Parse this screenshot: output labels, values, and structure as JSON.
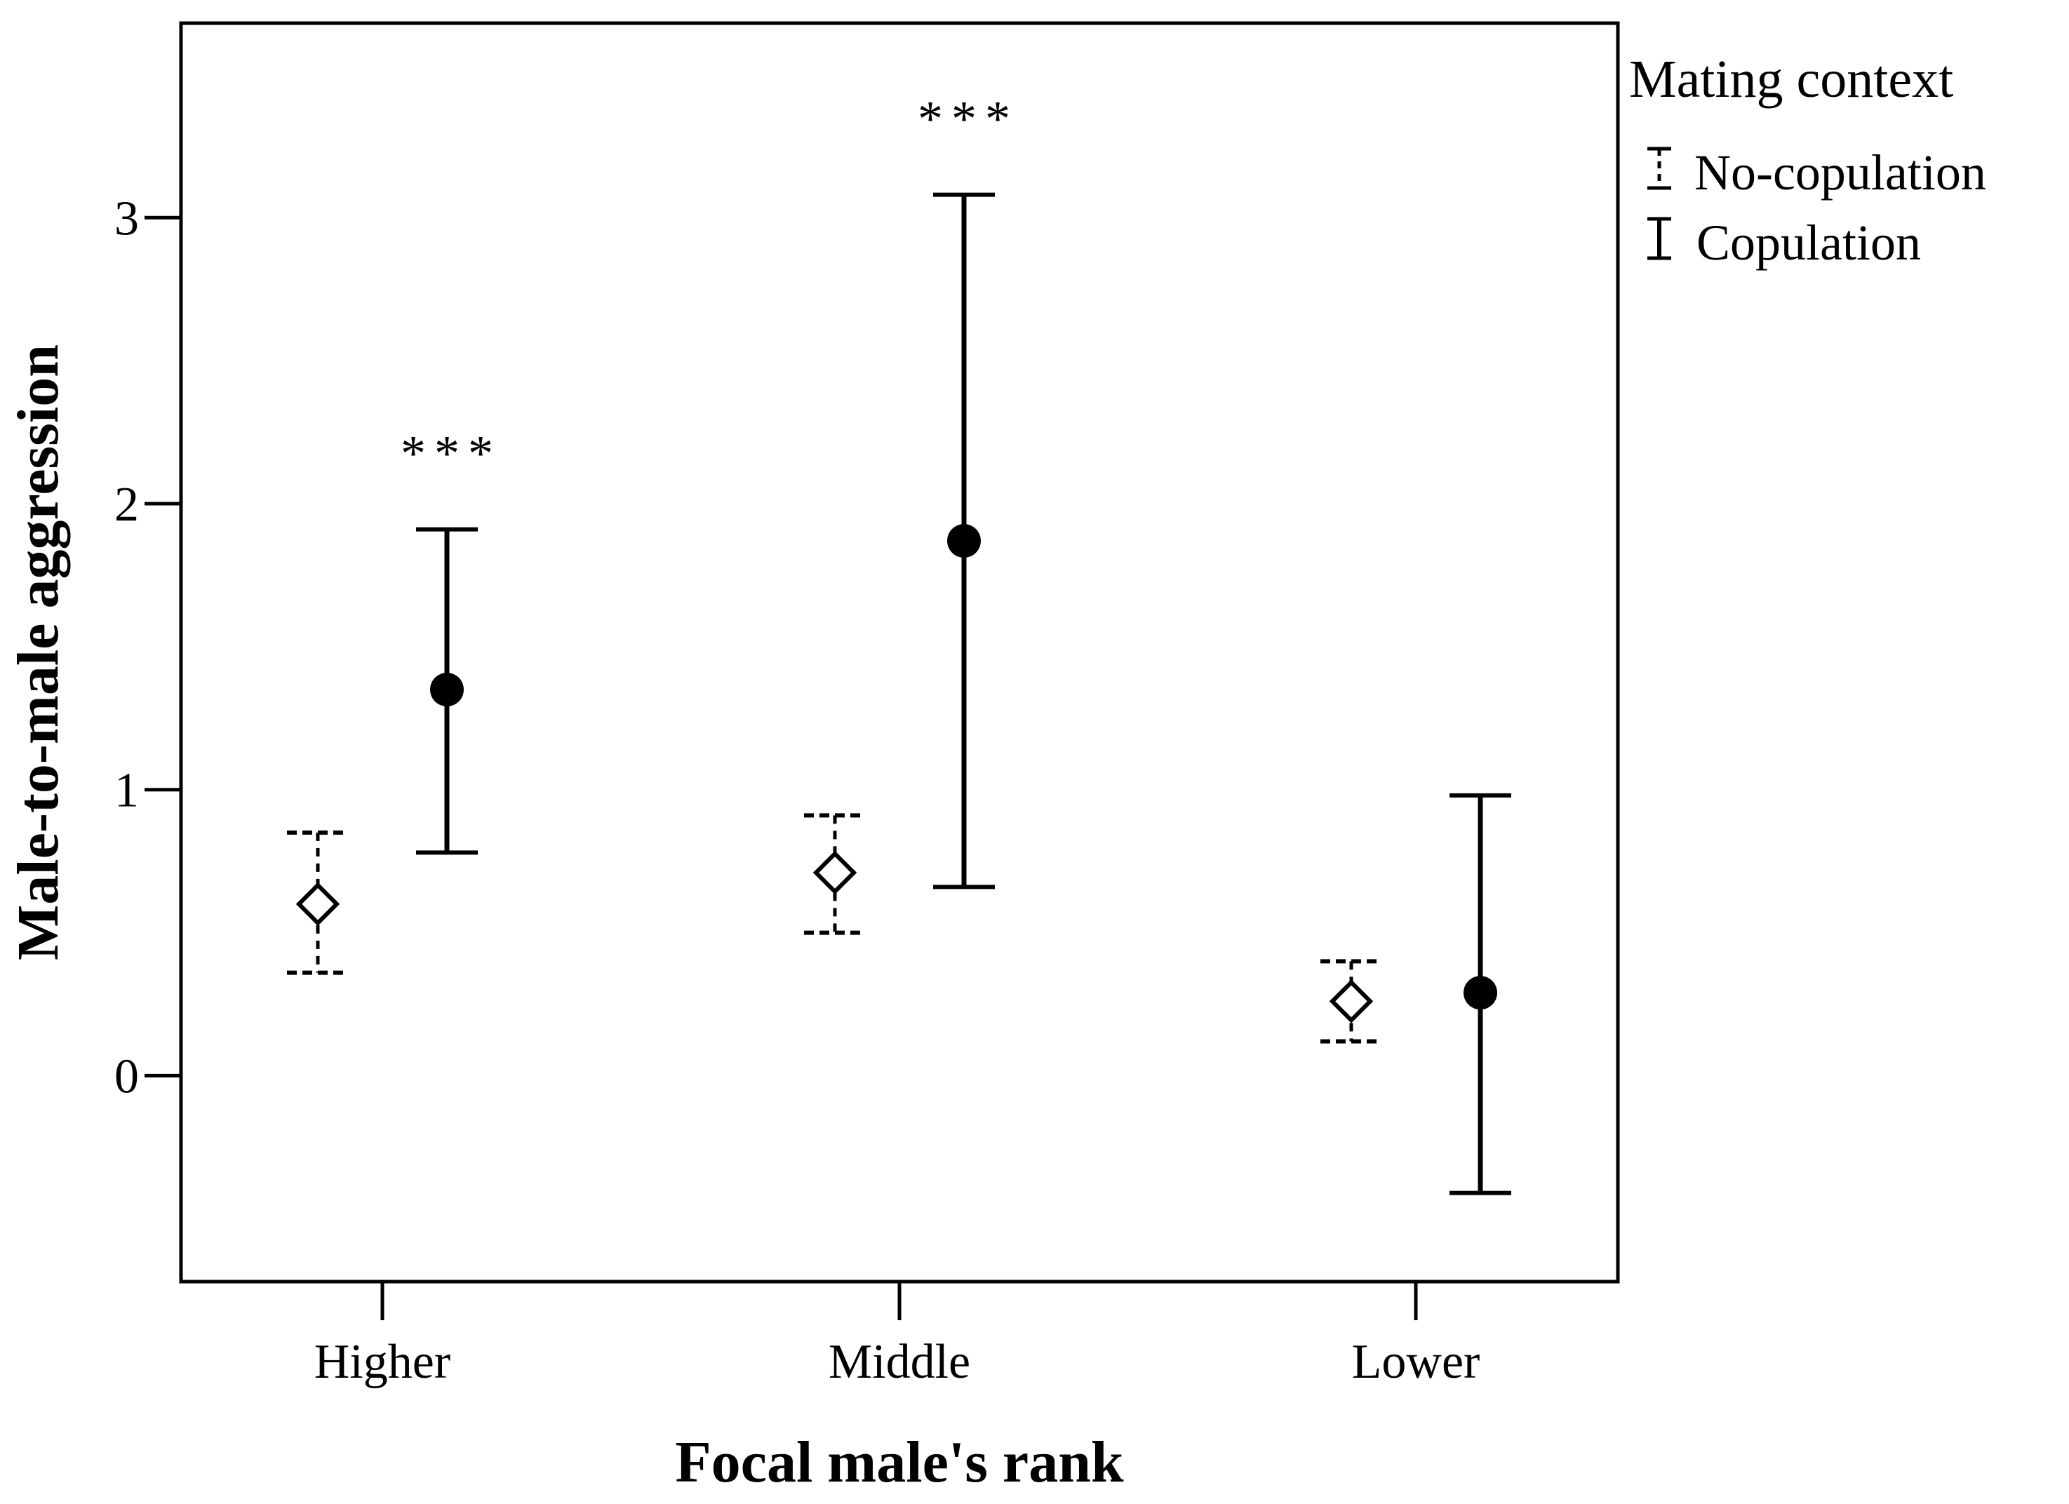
{
  "chart_data": {
    "type": "errorbar",
    "title": "",
    "xlabel": "Focal male's rank",
    "ylabel": "Male-to-male aggression",
    "categories": [
      "Higher",
      "Middle",
      "Lower"
    ],
    "ylim": [
      -0.72,
      3.68
    ],
    "yticks": [
      0,
      1,
      2,
      3
    ],
    "ytick_labels": [
      "0",
      "1",
      "2",
      "3"
    ],
    "legend": {
      "title": "Mating context",
      "position": "right"
    },
    "series": [
      {
        "name": "No-copulation",
        "marker": "diamond-open",
        "line": "dashed",
        "means": [
          0.6,
          0.71,
          0.26
        ],
        "lower": [
          0.36,
          0.5,
          0.12
        ],
        "upper": [
          0.85,
          0.91,
          0.4
        ]
      },
      {
        "name": "Copulation",
        "marker": "circle-filled",
        "line": "solid",
        "means": [
          1.35,
          1.87,
          0.29
        ],
        "lower": [
          0.78,
          0.66,
          -0.41
        ],
        "upper": [
          1.91,
          3.08,
          0.98
        ]
      }
    ],
    "annotations": [
      {
        "category": "Higher",
        "series": "Copulation",
        "text": "***"
      },
      {
        "category": "Middle",
        "series": "Copulation",
        "text": "***"
      }
    ]
  }
}
